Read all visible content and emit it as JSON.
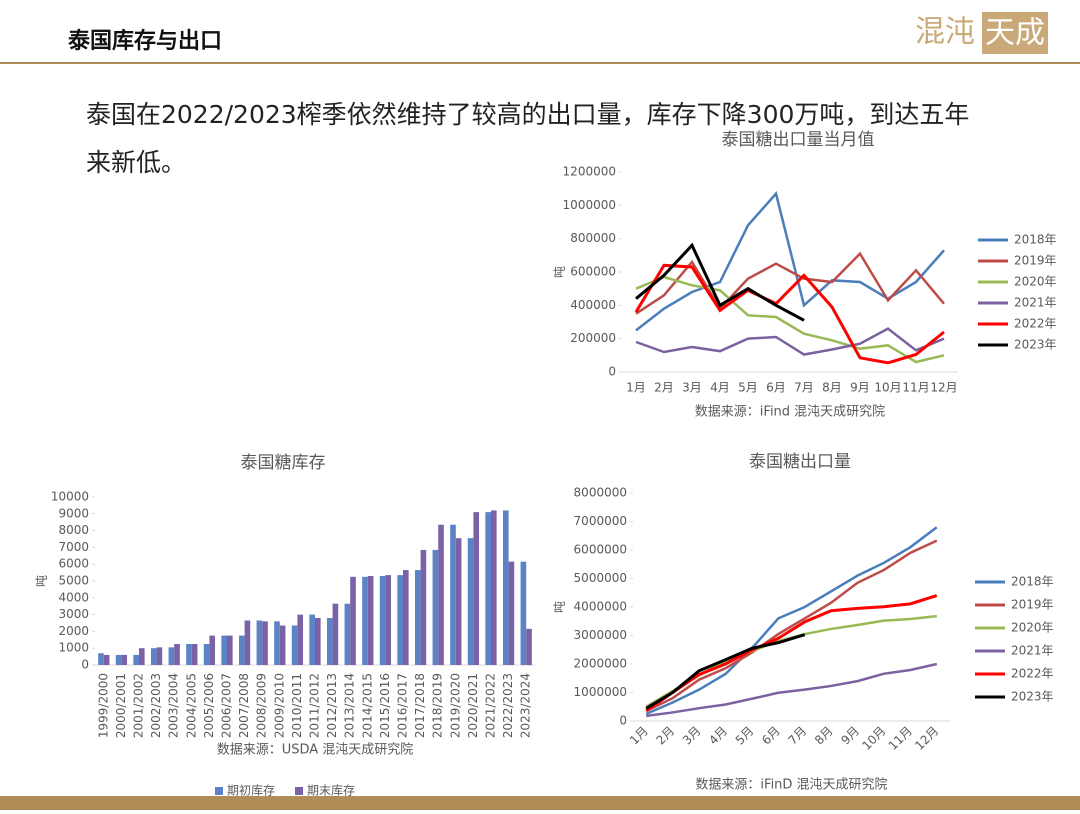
{
  "header": {
    "title": "泰国库存与出口",
    "logo": [
      "混沌",
      "天成"
    ]
  },
  "paragraph": [
    "泰国在2022/2023榨季依然维持了较高的出口量，库存下降300万吨，到达五年",
    "来新低。"
  ],
  "chart_data": [
    {
      "type": "line",
      "title": "泰国糖出口量当月值",
      "y_label": "吨",
      "note": "数据来源：iFind  混沌天成研究院",
      "categories": [
        "1月",
        "2月",
        "3月",
        "4月",
        "5月",
        "6月",
        "7月",
        "8月",
        "9月",
        "10月",
        "11月",
        "12月"
      ],
      "ylim": [
        0,
        1200000
      ],
      "yticks": [
        0,
        200000,
        400000,
        600000,
        800000,
        1000000,
        1200000
      ],
      "legend": "right",
      "series": [
        {
          "name": "2018年",
          "color": "#4a7ebb",
          "values": [
            250000,
            380000,
            480000,
            540000,
            880000,
            1070000,
            400000,
            550000,
            540000,
            440000,
            540000,
            730000
          ]
        },
        {
          "name": "2019年",
          "color": "#be4b48",
          "values": [
            350000,
            460000,
            660000,
            380000,
            560000,
            650000,
            560000,
            540000,
            710000,
            430000,
            610000,
            410000
          ]
        },
        {
          "name": "2020年",
          "color": "#98b954",
          "values": [
            500000,
            570000,
            520000,
            490000,
            340000,
            330000,
            230000,
            190000,
            140000,
            160000,
            60000,
            100000
          ]
        },
        {
          "name": "2021年",
          "color": "#7d60a0",
          "values": [
            180000,
            120000,
            150000,
            125000,
            200000,
            210000,
            105000,
            135000,
            170000,
            260000,
            130000,
            200000
          ]
        },
        {
          "name": "2022年",
          "color": "#ff0000",
          "values": [
            360000,
            640000,
            630000,
            370000,
            490000,
            410000,
            580000,
            390000,
            85000,
            55000,
            105000,
            240000
          ]
        },
        {
          "name": "2023年",
          "color": "#000000",
          "values": [
            440000,
            580000,
            760000,
            400000,
            500000,
            400000,
            310000,
            null,
            null,
            null,
            null,
            null
          ]
        }
      ]
    },
    {
      "type": "bar",
      "title": "泰国糖库存",
      "y_label": "吨",
      "note": "数据来源：USDA 混沌天成研究院",
      "categories": [
        "1999/2000",
        "2000/2001",
        "2001/2002",
        "2002/2003",
        "2003/2004",
        "2004/2005",
        "2005/2006",
        "2006/2007",
        "2007/2008",
        "2008/2009",
        "2009/2010",
        "2010/2011",
        "2011/2012",
        "2012/2013",
        "2013/2014",
        "2014/2015",
        "2015/2016",
        "2016/2017",
        "2017/2018",
        "2018/2019",
        "2019/2020",
        "2020/2021",
        "2021/2022",
        "2022/2023",
        "2023/2024"
      ],
      "ylim": [
        0,
        10000
      ],
      "yticks": [
        0,
        1000,
        2000,
        3000,
        4000,
        5000,
        6000,
        7000,
        8000,
        9000,
        10000
      ],
      "legend": "bottom",
      "series": [
        {
          "name": "期初库存",
          "color": "#5b83c6",
          "values": [
            700,
            600,
            600,
            1000,
            1050,
            1250,
            1250,
            1750,
            1750,
            2650,
            2600,
            2350,
            3000,
            2800,
            3650,
            5250,
            5300,
            5350,
            5650,
            6850,
            8350,
            7550,
            9100,
            9200,
            6150
          ]
        },
        {
          "name": "期末库存",
          "color": "#7b62a6",
          "values": [
            600,
            600,
            1000,
            1050,
            1250,
            1250,
            1750,
            1750,
            2650,
            2600,
            2350,
            3000,
            2800,
            3650,
            5250,
            5300,
            5350,
            5650,
            6850,
            8350,
            7550,
            9100,
            9200,
            6150,
            2150
          ]
        }
      ]
    },
    {
      "type": "line",
      "title": "泰国糖出口量",
      "y_label": "吨",
      "note": "数据来源：iFinD 混沌天成研究院",
      "categories": [
        "1月",
        "2月",
        "3月",
        "4月",
        "5月",
        "6月",
        "7月",
        "8月",
        "9月",
        "10月",
        "11月",
        "12月"
      ],
      "ylim": [
        0,
        8000000
      ],
      "yticks": [
        0,
        1000000,
        2000000,
        3000000,
        4000000,
        5000000,
        6000000,
        7000000,
        8000000
      ],
      "legend": "right",
      "series": [
        {
          "name": "2018年",
          "color": "#4a7ebb",
          "values": [
            250000,
            650000,
            1100000,
            1650000,
            2550000,
            3600000,
            4000000,
            4550000,
            5100000,
            5550000,
            6100000,
            6800000
          ]
        },
        {
          "name": "2019年",
          "color": "#be4b48",
          "values": [
            350000,
            800000,
            1450000,
            1850000,
            2400000,
            3050000,
            3600000,
            4150000,
            4850000,
            5300000,
            5900000,
            6330000
          ]
        },
        {
          "name": "2020年",
          "color": "#98b954",
          "values": [
            500000,
            1050000,
            1600000,
            2100000,
            2450000,
            2800000,
            3050000,
            3230000,
            3370000,
            3520000,
            3580000,
            3680000
          ]
        },
        {
          "name": "2021年",
          "color": "#7d60a0",
          "values": [
            180000,
            300000,
            450000,
            580000,
            780000,
            990000,
            1100000,
            1230000,
            1400000,
            1660000,
            1790000,
            2000000
          ]
        },
        {
          "name": "2022年",
          "color": "#ff0000",
          "values": [
            360000,
            1000000,
            1630000,
            2000000,
            2490000,
            2900000,
            3480000,
            3870000,
            3950000,
            4010000,
            4110000,
            4400000
          ]
        },
        {
          "name": "2023年",
          "color": "#000000",
          "values": [
            440000,
            1000000,
            1760000,
            2150000,
            2550000,
            2750000,
            3030000,
            null,
            null,
            null,
            null,
            null
          ]
        }
      ]
    }
  ]
}
